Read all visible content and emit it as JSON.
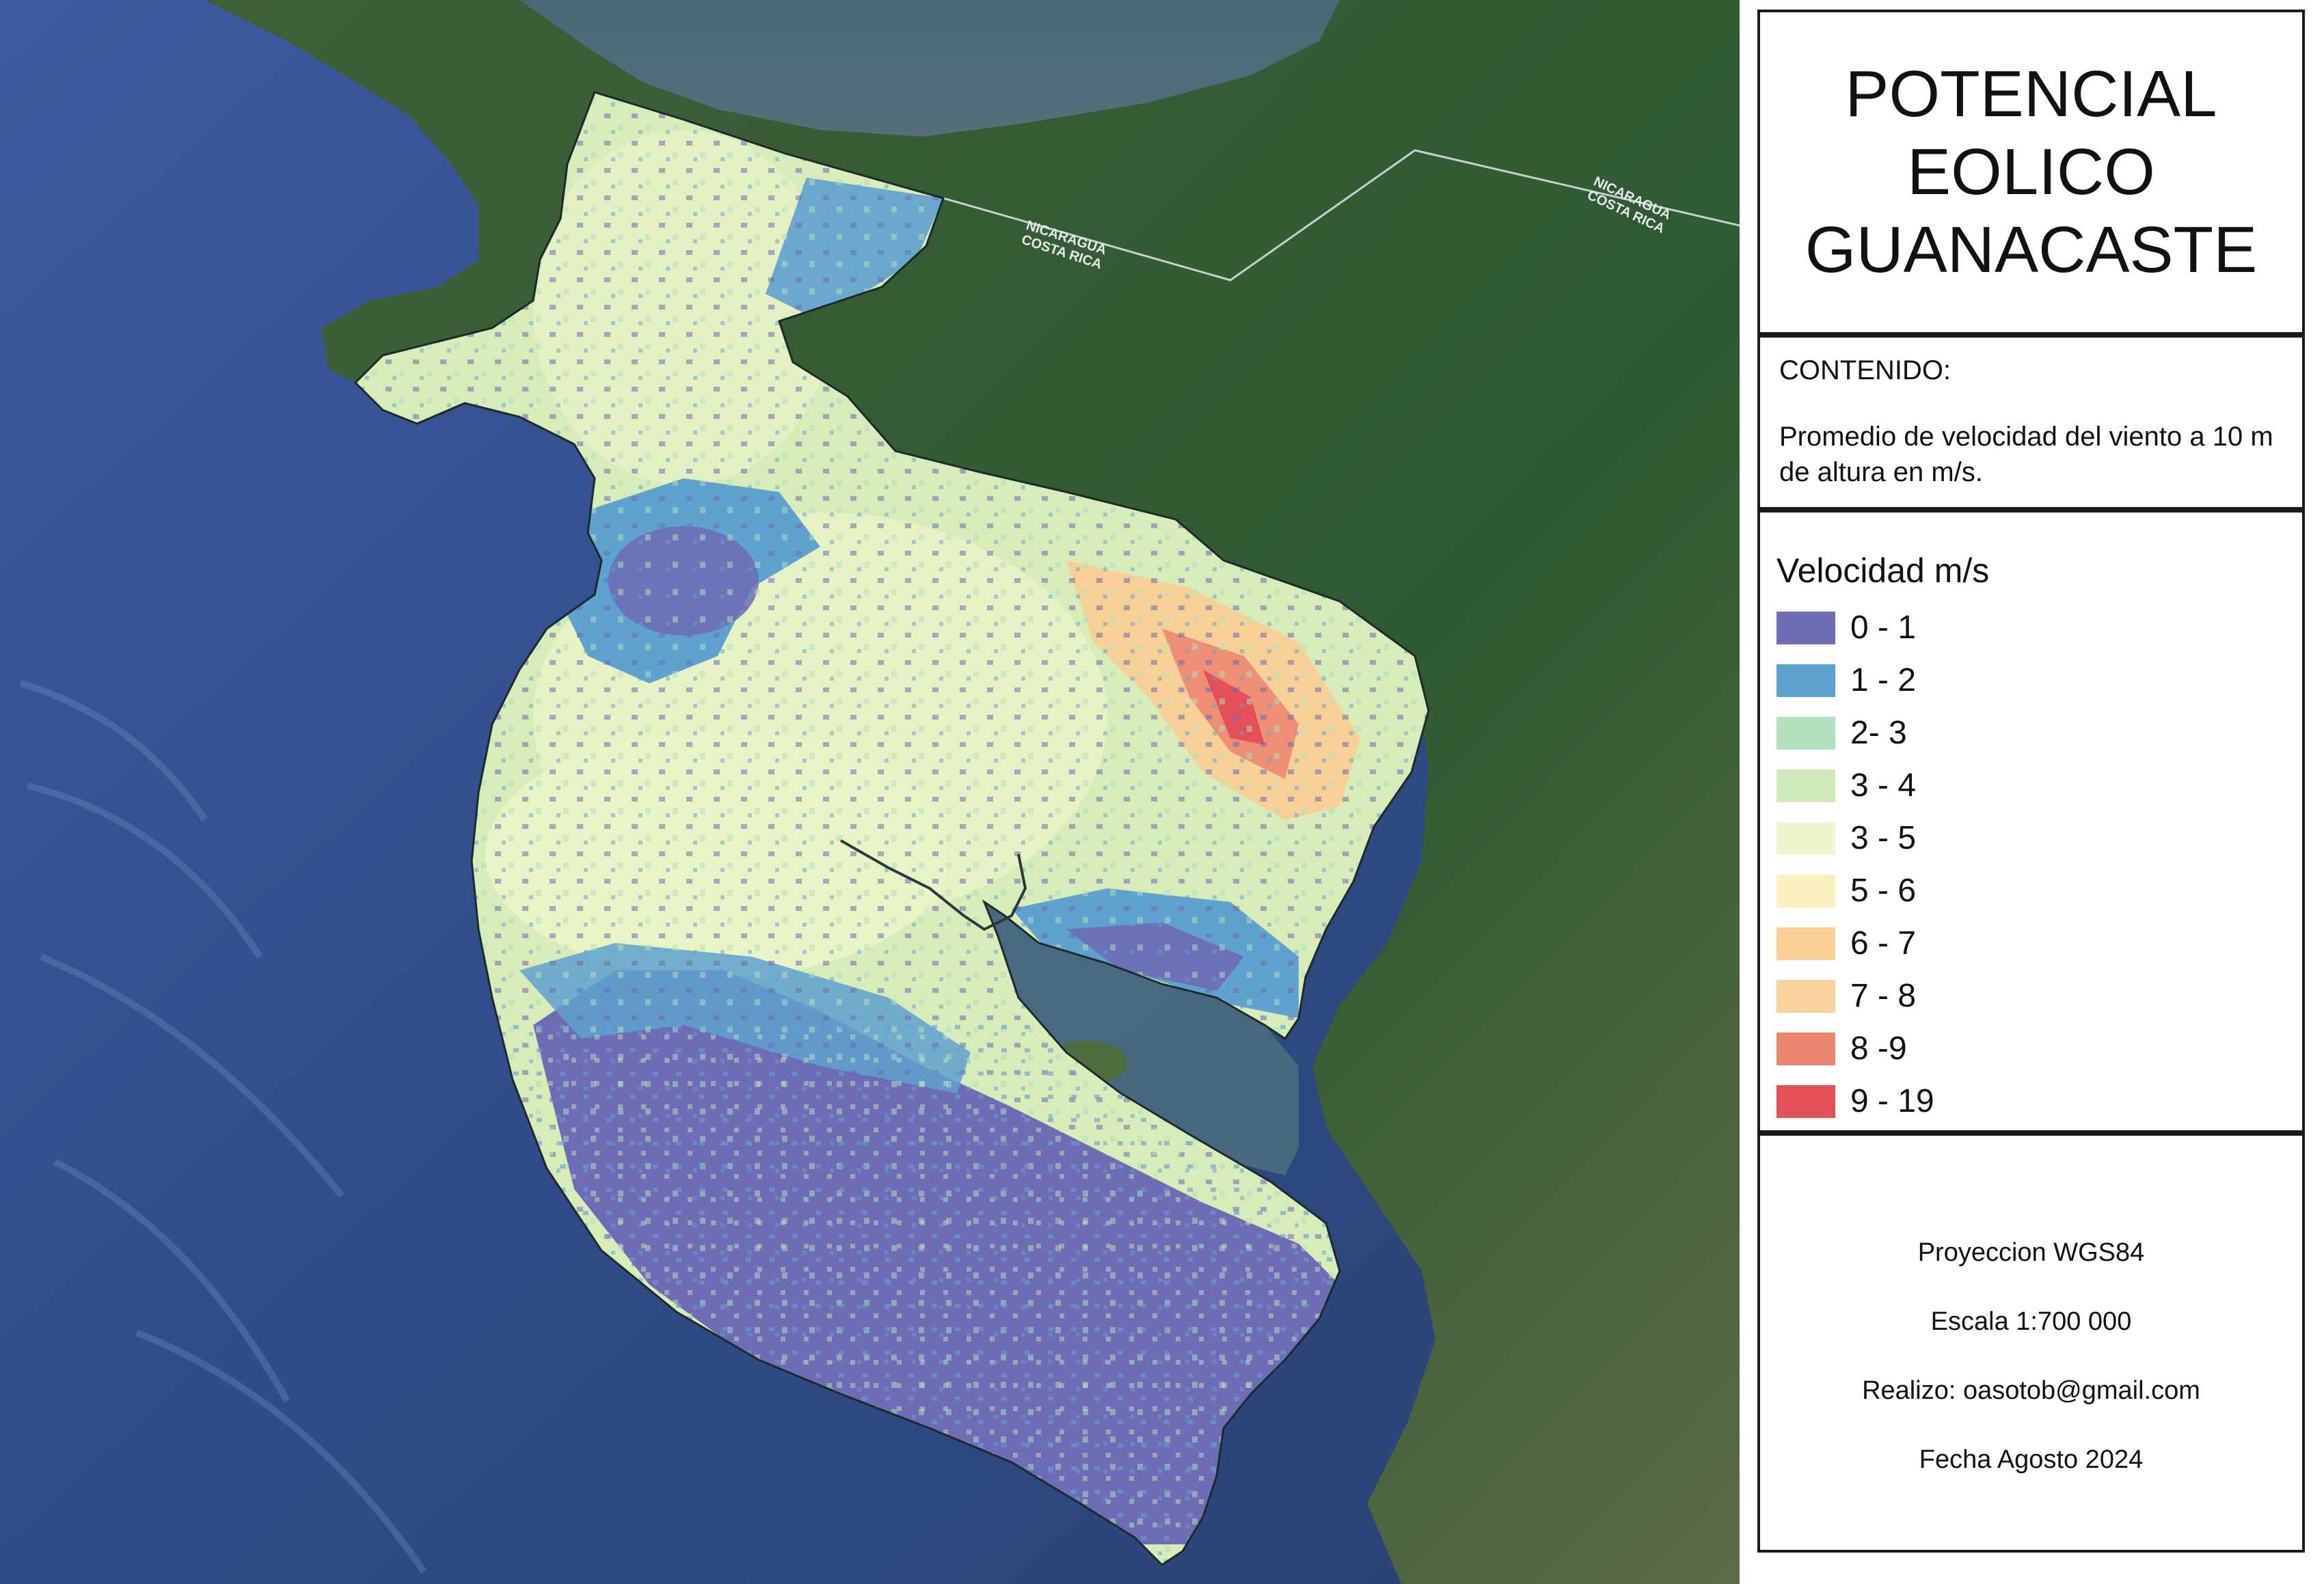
{
  "title": "POTENCIAL\nEOLICO\nGUANACASTE",
  "contenido": {
    "heading": "CONTENIDO:",
    "text": "Promedio de velocidad del viento a 10 m de altura en m/s."
  },
  "legend": {
    "title": "Velocidad m/s",
    "items": [
      {
        "label": "0 - 1",
        "color": "#6e6cb5"
      },
      {
        "label": "1 - 2",
        "color": "#5fa1cf"
      },
      {
        "label": "2- 3",
        "color": "#b4e0c0"
      },
      {
        "label": "3 - 4",
        "color": "#cfe9b9"
      },
      {
        "label": "3 - 5",
        "color": "#eef6cf"
      },
      {
        "label": "5 - 6",
        "color": "#fbf0bd"
      },
      {
        "label": "6 - 7",
        "color": "#f8cf94"
      },
      {
        "label": "7 - 8",
        "color": "#f8d39e"
      },
      {
        "label": "8 -9",
        "color": "#ed8670"
      },
      {
        "label": "9 - 19",
        "color": "#e35058"
      }
    ]
  },
  "metadata": {
    "projection": "Proyeccion WGS84",
    "scale": "Escala 1:700 000",
    "author": "Realizo: oasotob@gmail.com",
    "date": "Fecha Agosto 2024"
  },
  "map_labels": {
    "border_left": "NICARAGUA\nCOSTA RICA",
    "border_right": "NICARAGUA\nCOSTA RICA"
  }
}
